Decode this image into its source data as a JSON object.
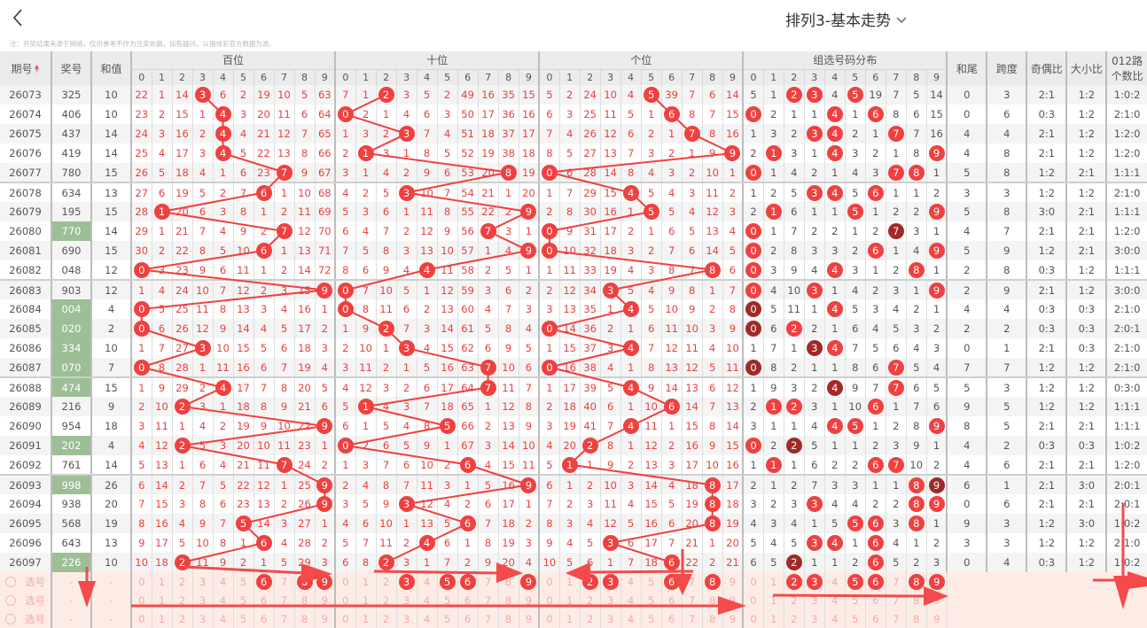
{
  "header": {
    "title": "排列3-基本走势",
    "back_icon": "chevron-left-icon",
    "dropdown_icon": "chevron-down-icon"
  },
  "note": "注：开奖结果来源于网络，仅供参考不作为兑奖依据。如有疑问，以福体彩官方数据为准。",
  "columns": {
    "issue": "期号",
    "prize": "奖号",
    "sum": "和值",
    "bai": "百位",
    "shi": "十位",
    "ge": "个位",
    "group": "组选号码分布",
    "tail": "和尾",
    "span": "跨度",
    "oe": "奇偶比",
    "bs": "大小比",
    "road_line1": "012路",
    "road_line2": "个数比"
  },
  "digits": [
    "0",
    "1",
    "2",
    "3",
    "4",
    "5",
    "6",
    "7",
    "8",
    "9"
  ],
  "colors": {
    "ball": "#f0403f",
    "ball_repeat": "#9f2a27",
    "miss_text": "#e8413f",
    "repeat_prize_bg": "#9dbe96",
    "selection_bg": "#fdece6",
    "annotation": "#f44a4a"
  },
  "rows": [
    {
      "issue": "26073",
      "prize": "325",
      "sum": "10",
      "bai": [
        22,
        1,
        14,
        3,
        6,
        2,
        19,
        10,
        5,
        63
      ],
      "shi": [
        7,
        1,
        2,
        3,
        5,
        2,
        49,
        16,
        35,
        15
      ],
      "ge": [
        5,
        2,
        24,
        10,
        4,
        5,
        39,
        7,
        6,
        14
      ],
      "group": [
        5,
        1,
        2,
        3,
        4,
        5,
        19,
        7,
        5,
        14
      ],
      "tail": "0",
      "span": "3",
      "oe": "2:1",
      "bs": "1:2",
      "road": "1:0:2"
    },
    {
      "issue": "26074",
      "prize": "406",
      "sum": "10",
      "bai": [
        23,
        2,
        15,
        1,
        4,
        3,
        20,
        11,
        6,
        64
      ],
      "shi": [
        0,
        2,
        1,
        4,
        6,
        3,
        50,
        17,
        36,
        16
      ],
      "ge": [
        6,
        3,
        25,
        11,
        5,
        1,
        6,
        8,
        7,
        15
      ],
      "group": [
        0,
        2,
        1,
        1,
        4,
        1,
        6,
        8,
        6,
        15
      ],
      "tail": "0",
      "span": "6",
      "oe": "0:3",
      "bs": "1:2",
      "road": "2:1:0"
    },
    {
      "issue": "26075",
      "prize": "437",
      "sum": "14",
      "bai": [
        24,
        3,
        16,
        2,
        4,
        4,
        21,
        12,
        7,
        65
      ],
      "shi": [
        1,
        3,
        2,
        3,
        7,
        4,
        51,
        18,
        37,
        17
      ],
      "ge": [
        7,
        4,
        26,
        12,
        6,
        2,
        1,
        7,
        8,
        16
      ],
      "group": [
        1,
        3,
        2,
        3,
        4,
        2,
        1,
        7,
        7,
        16
      ],
      "tail": "4",
      "span": "4",
      "oe": "2:1",
      "bs": "1:2",
      "road": "1:2:0"
    },
    {
      "issue": "26076",
      "prize": "419",
      "sum": "14",
      "bai": [
        25,
        4,
        17,
        3,
        4,
        5,
        22,
        13,
        8,
        66
      ],
      "shi": [
        2,
        1,
        3,
        1,
        8,
        5,
        52,
        19,
        38,
        18
      ],
      "ge": [
        8,
        5,
        27,
        13,
        7,
        3,
        2,
        1,
        9,
        9
      ],
      "group": [
        2,
        1,
        3,
        1,
        4,
        3,
        2,
        1,
        8,
        9
      ],
      "tail": "4",
      "span": "8",
      "oe": "2:1",
      "bs": "1:2",
      "road": "1:2:0"
    },
    {
      "issue": "26077",
      "prize": "780",
      "sum": "15",
      "bai": [
        26,
        5,
        18,
        4,
        1,
        6,
        23,
        7,
        9,
        67
      ],
      "shi": [
        3,
        1,
        4,
        2,
        9,
        6,
        53,
        20,
        8,
        19
      ],
      "ge": [
        0,
        6,
        28,
        14,
        8,
        4,
        3,
        2,
        10,
        1
      ],
      "group": [
        0,
        1,
        4,
        2,
        1,
        4,
        3,
        7,
        8,
        1
      ],
      "tail": "5",
      "span": "8",
      "oe": "1:2",
      "bs": "2:1",
      "road": "1:1:1"
    },
    {
      "issue": "26078",
      "prize": "634",
      "sum": "13",
      "bai": [
        27,
        6,
        19,
        5,
        2,
        7,
        6,
        1,
        10,
        68
      ],
      "shi": [
        4,
        2,
        5,
        3,
        10,
        7,
        54,
        21,
        1,
        20
      ],
      "ge": [
        1,
        7,
        29,
        15,
        4,
        5,
        4,
        3,
        11,
        2
      ],
      "group": [
        1,
        2,
        5,
        3,
        4,
        5,
        6,
        1,
        1,
        2
      ],
      "tail": "3",
      "span": "3",
      "oe": "1:2",
      "bs": "1:2",
      "road": "2:1:0"
    },
    {
      "issue": "26079",
      "prize": "195",
      "sum": "15",
      "bai": [
        28,
        1,
        20,
        6,
        3,
        8,
        1,
        2,
        11,
        69
      ],
      "shi": [
        5,
        3,
        6,
        1,
        11,
        8,
        55,
        22,
        2,
        9
      ],
      "ge": [
        2,
        8,
        30,
        16,
        1,
        5,
        5,
        4,
        12,
        3
      ],
      "group": [
        2,
        1,
        6,
        1,
        1,
        5,
        1,
        2,
        2,
        9
      ],
      "tail": "5",
      "span": "8",
      "oe": "3:0",
      "bs": "2:1",
      "road": "1:1:1"
    },
    {
      "issue": "26080",
      "prize": "770",
      "sum": "14",
      "bai": [
        29,
        1,
        21,
        7,
        4,
        9,
        2,
        7,
        12,
        70
      ],
      "shi": [
        6,
        4,
        7,
        2,
        12,
        9,
        56,
        7,
        3,
        1
      ],
      "ge": [
        0,
        9,
        31,
        17,
        2,
        1,
        6,
        5,
        13,
        4
      ],
      "group": [
        0,
        1,
        7,
        2,
        2,
        1,
        2,
        7,
        3,
        1
      ],
      "tail": "4",
      "span": "7",
      "oe": "2:1",
      "bs": "2:1",
      "road": "1:2:0"
    },
    {
      "issue": "26081",
      "prize": "690",
      "sum": "15",
      "bai": [
        30,
        2,
        22,
        8,
        5,
        10,
        6,
        1,
        13,
        71
      ],
      "shi": [
        7,
        5,
        8,
        3,
        13,
        10,
        57,
        1,
        4,
        9
      ],
      "ge": [
        0,
        10,
        32,
        18,
        3,
        2,
        7,
        6,
        14,
        5
      ],
      "group": [
        0,
        2,
        8,
        3,
        3,
        2,
        6,
        1,
        4,
        9
      ],
      "tail": "5",
      "span": "9",
      "oe": "1:2",
      "bs": "2:1",
      "road": "3:0:0"
    },
    {
      "issue": "26082",
      "prize": "048",
      "sum": "12",
      "bai": [
        0,
        3,
        23,
        9,
        6,
        11,
        1,
        2,
        14,
        72
      ],
      "shi": [
        8,
        6,
        9,
        4,
        4,
        11,
        58,
        2,
        5,
        1
      ],
      "ge": [
        1,
        11,
        33,
        19,
        4,
        3,
        8,
        7,
        8,
        6
      ],
      "group": [
        0,
        3,
        9,
        4,
        4,
        3,
        1,
        2,
        8,
        1
      ],
      "tail": "2",
      "span": "8",
      "oe": "0:3",
      "bs": "1:2",
      "road": "1:1:1"
    },
    {
      "issue": "26083",
      "prize": "903",
      "sum": "12",
      "bai": [
        1,
        4,
        24,
        10,
        7,
        12,
        2,
        3,
        15,
        9
      ],
      "shi": [
        0,
        7,
        10,
        5,
        1,
        12,
        59,
        3,
        6,
        2
      ],
      "ge": [
        2,
        12,
        34,
        3,
        5,
        4,
        9,
        8,
        1,
        7
      ],
      "group": [
        0,
        4,
        10,
        3,
        1,
        4,
        2,
        3,
        1,
        9
      ],
      "tail": "2",
      "span": "9",
      "oe": "2:1",
      "bs": "1:2",
      "road": "3:0:0"
    },
    {
      "issue": "26084",
      "prize": "004",
      "sum": "4",
      "bai": [
        0,
        5,
        25,
        11,
        8,
        13,
        3,
        4,
        16,
        1
      ],
      "shi": [
        0,
        8,
        11,
        6,
        2,
        13,
        60,
        4,
        7,
        3
      ],
      "ge": [
        3,
        13,
        35,
        1,
        4,
        5,
        10,
        9,
        2,
        8
      ],
      "group": [
        0,
        5,
        11,
        1,
        4,
        5,
        3,
        4,
        2,
        1
      ],
      "tail": "4",
      "span": "4",
      "oe": "0:3",
      "bs": "0:3",
      "road": "2:1:0"
    },
    {
      "issue": "26085",
      "prize": "020",
      "sum": "2",
      "bai": [
        0,
        6,
        26,
        12,
        9,
        14,
        4,
        5,
        17,
        2
      ],
      "shi": [
        1,
        9,
        2,
        7,
        3,
        14,
        61,
        5,
        8,
        4
      ],
      "ge": [
        0,
        14,
        36,
        2,
        1,
        6,
        11,
        10,
        3,
        9
      ],
      "group": [
        0,
        6,
        2,
        2,
        1,
        6,
        4,
        5,
        3,
        2
      ],
      "tail": "2",
      "span": "2",
      "oe": "0:3",
      "bs": "0:3",
      "road": "2:0:1"
    },
    {
      "issue": "26086",
      "prize": "334",
      "sum": "10",
      "bai": [
        1,
        7,
        27,
        3,
        10,
        15,
        5,
        6,
        18,
        3
      ],
      "shi": [
        2,
        10,
        1,
        3,
        4,
        15,
        62,
        6,
        9,
        5
      ],
      "ge": [
        1,
        15,
        37,
        3,
        4,
        7,
        12,
        11,
        4,
        10
      ],
      "group": [
        1,
        7,
        1,
        3,
        4,
        7,
        5,
        6,
        4,
        3
      ],
      "tail": "0",
      "span": "1",
      "oe": "2:1",
      "bs": "0:3",
      "road": "2:1:0"
    },
    {
      "issue": "26087",
      "prize": "070",
      "sum": "7",
      "bai": [
        0,
        8,
        28,
        1,
        11,
        16,
        6,
        7,
        19,
        4
      ],
      "shi": [
        3,
        11,
        2,
        1,
        5,
        16,
        63,
        7,
        10,
        6
      ],
      "ge": [
        0,
        16,
        38,
        4,
        1,
        8,
        13,
        12,
        5,
        11
      ],
      "group": [
        0,
        8,
        2,
        1,
        1,
        8,
        6,
        7,
        5,
        4
      ],
      "tail": "7",
      "span": "7",
      "oe": "1:2",
      "bs": "1:2",
      "road": "2:1:0"
    },
    {
      "issue": "26088",
      "prize": "474",
      "sum": "15",
      "bai": [
        1,
        9,
        29,
        2,
        4,
        17,
        7,
        8,
        20,
        5
      ],
      "shi": [
        4,
        12,
        3,
        2,
        6,
        17,
        64,
        7,
        11,
        7
      ],
      "ge": [
        1,
        17,
        39,
        5,
        4,
        9,
        14,
        13,
        6,
        12
      ],
      "group": [
        1,
        9,
        3,
        2,
        4,
        9,
        7,
        7,
        6,
        5
      ],
      "tail": "5",
      "span": "3",
      "oe": "1:2",
      "bs": "1:2",
      "road": "0:3:0"
    },
    {
      "issue": "26089",
      "prize": "216",
      "sum": "9",
      "bai": [
        2,
        10,
        2,
        3,
        1,
        18,
        8,
        9,
        21,
        6
      ],
      "shi": [
        5,
        1,
        4,
        3,
        7,
        18,
        65,
        1,
        12,
        8
      ],
      "ge": [
        2,
        18,
        40,
        6,
        1,
        10,
        6,
        14,
        7,
        13
      ],
      "group": [
        2,
        1,
        2,
        3,
        1,
        10,
        6,
        1,
        7,
        6
      ],
      "tail": "9",
      "span": "5",
      "oe": "1:2",
      "bs": "1:2",
      "road": "1:1:1"
    },
    {
      "issue": "26090",
      "prize": "954",
      "sum": "18",
      "bai": [
        3,
        11,
        1,
        4,
        2,
        19,
        9,
        10,
        22,
        9
      ],
      "shi": [
        6,
        1,
        5,
        4,
        8,
        5,
        66,
        2,
        13,
        9
      ],
      "ge": [
        3,
        19,
        41,
        7,
        4,
        11,
        1,
        15,
        8,
        14
      ],
      "group": [
        3,
        1,
        1,
        4,
        4,
        5,
        1,
        2,
        8,
        9
      ],
      "tail": "8",
      "span": "5",
      "oe": "2:1",
      "bs": "2:1",
      "road": "1:1:1"
    },
    {
      "issue": "26091",
      "prize": "202",
      "sum": "4",
      "bai": [
        4,
        12,
        2,
        5,
        3,
        20,
        10,
        11,
        23,
        1
      ],
      "shi": [
        0,
        2,
        6,
        5,
        9,
        1,
        67,
        3,
        14,
        10
      ],
      "ge": [
        4,
        20,
        2,
        8,
        1,
        12,
        2,
        16,
        9,
        15
      ],
      "group": [
        0,
        2,
        2,
        5,
        1,
        1,
        2,
        3,
        9,
        1
      ],
      "tail": "4",
      "span": "2",
      "oe": "0:3",
      "bs": "0:3",
      "road": "1:0:2"
    },
    {
      "issue": "26092",
      "prize": "761",
      "sum": "14",
      "bai": [
        5,
        13,
        1,
        6,
        4,
        21,
        11,
        7,
        24,
        2
      ],
      "shi": [
        1,
        3,
        7,
        6,
        10,
        2,
        6,
        4,
        15,
        11
      ],
      "ge": [
        5,
        1,
        1,
        9,
        2,
        13,
        3,
        17,
        10,
        16
      ],
      "group": [
        1,
        1,
        1,
        6,
        2,
        2,
        6,
        7,
        10,
        2
      ],
      "tail": "4",
      "span": "6",
      "oe": "2:1",
      "bs": "2:1",
      "road": "1:2:0"
    },
    {
      "issue": "26093",
      "prize": "998",
      "sum": "26",
      "bai": [
        6,
        14,
        2,
        7,
        5,
        22,
        12,
        1,
        25,
        9
      ],
      "shi": [
        2,
        4,
        8,
        7,
        11,
        3,
        1,
        5,
        16,
        9
      ],
      "ge": [
        6,
        1,
        2,
        10,
        3,
        14,
        4,
        18,
        8,
        17
      ],
      "group": [
        2,
        1,
        2,
        7,
        3,
        3,
        1,
        1,
        8,
        9
      ],
      "tail": "6",
      "span": "1",
      "oe": "2:1",
      "bs": "3:0",
      "road": "2:0:1"
    },
    {
      "issue": "26094",
      "prize": "938",
      "sum": "20",
      "bai": [
        7,
        15,
        3,
        8,
        6,
        23,
        13,
        2,
        26,
        9
      ],
      "shi": [
        3,
        5,
        9,
        3,
        12,
        4,
        2,
        6,
        17,
        1
      ],
      "ge": [
        7,
        2,
        3,
        11,
        4,
        15,
        5,
        19,
        8,
        18
      ],
      "group": [
        3,
        2,
        3,
        3,
        4,
        4,
        2,
        2,
        8,
        9
      ],
      "tail": "0",
      "span": "6",
      "oe": "2:1",
      "bs": "2:1",
      "road": "2:0:1"
    },
    {
      "issue": "26095",
      "prize": "568",
      "sum": "19",
      "bai": [
        8,
        16,
        4,
        9,
        7,
        5,
        14,
        3,
        27,
        1
      ],
      "shi": [
        4,
        6,
        10,
        1,
        13,
        5,
        6,
        7,
        18,
        2
      ],
      "ge": [
        8,
        3,
        4,
        12,
        5,
        16,
        6,
        20,
        8,
        19
      ],
      "group": [
        4,
        3,
        4,
        1,
        5,
        5,
        6,
        3,
        8,
        1
      ],
      "tail": "9",
      "span": "3",
      "oe": "1:2",
      "bs": "3:0",
      "road": "1:0:2"
    },
    {
      "issue": "26096",
      "prize": "643",
      "sum": "13",
      "bai": [
        9,
        17,
        5,
        10,
        8,
        1,
        6,
        4,
        28,
        2
      ],
      "shi": [
        5,
        7,
        11,
        2,
        4,
        6,
        1,
        8,
        19,
        3
      ],
      "ge": [
        9,
        4,
        5,
        3,
        6,
        17,
        7,
        21,
        1,
        20
      ],
      "group": [
        5,
        4,
        5,
        3,
        4,
        1,
        6,
        4,
        1,
        2
      ],
      "tail": "3",
      "span": "3",
      "oe": "1:2",
      "bs": "1:2",
      "road": "2:1:0"
    },
    {
      "issue": "26097",
      "prize": "226",
      "sum": "10",
      "bai": [
        10,
        18,
        2,
        11,
        9,
        2,
        1,
        5,
        29,
        3
      ],
      "shi": [
        6,
        8,
        2,
        3,
        1,
        7,
        2,
        9,
        20,
        4
      ],
      "ge": [
        10,
        5,
        6,
        1,
        7,
        18,
        6,
        22,
        2,
        21
      ],
      "group": [
        6,
        5,
        2,
        1,
        1,
        2,
        6,
        5,
        2,
        3
      ],
      "tail": "0",
      "span": "4",
      "oe": "0:3",
      "bs": "1:2",
      "road": "1:0:2"
    }
  ],
  "selection": {
    "label": "选号",
    "dash": "-",
    "rows": [
      {
        "bai": [
          6,
          8,
          9
        ],
        "shi": [
          3,
          5,
          6,
          9
        ],
        "ge": [
          2,
          3,
          6,
          8
        ],
        "group": [
          2,
          3,
          5,
          6,
          8,
          9
        ]
      },
      {
        "bai": [],
        "shi": [],
        "ge": [],
        "group": []
      },
      {
        "bai": [],
        "shi": [],
        "ge": [],
        "group": []
      }
    ]
  }
}
